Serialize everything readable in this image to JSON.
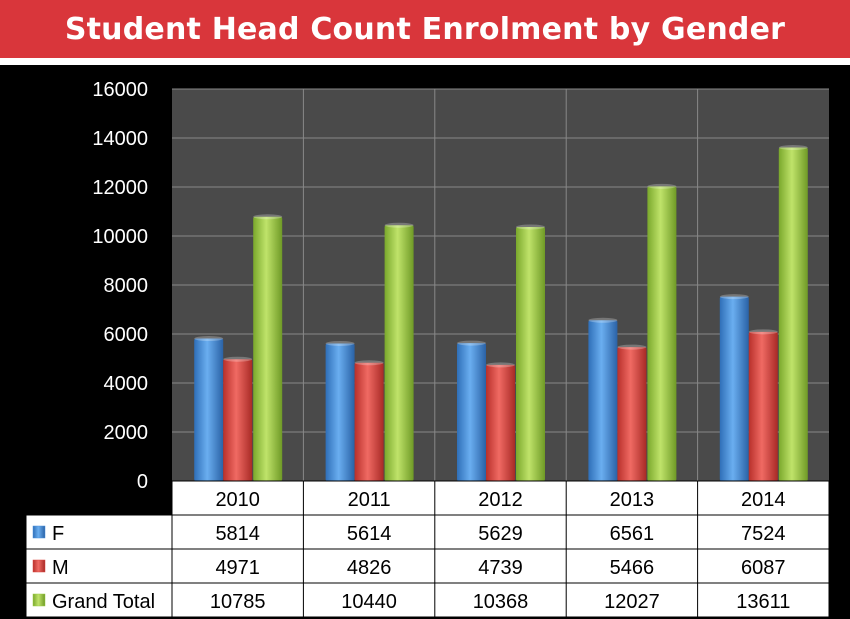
{
  "page": {
    "title": "Student Head Count Enrolment by Gender"
  },
  "colors": {
    "title_bar": "#d9363b",
    "plot_bg": "#4a4a4a",
    "F": "#4a90d9",
    "M": "#d9453f",
    "Grand Total": "#9bcc45"
  },
  "chart_data": {
    "type": "bar",
    "title": "Student Head Count Enrolment by Gender",
    "categories": [
      "2010",
      "2011",
      "2012",
      "2013",
      "2014"
    ],
    "series": [
      {
        "name": "F",
        "values": [
          5814,
          5614,
          5629,
          6561,
          7524
        ]
      },
      {
        "name": "M",
        "values": [
          4971,
          4826,
          4739,
          5466,
          6087
        ]
      },
      {
        "name": "Grand Total",
        "values": [
          10785,
          10440,
          10368,
          12027,
          13611
        ]
      }
    ],
    "yticks": [
      0,
      2000,
      4000,
      6000,
      8000,
      10000,
      12000,
      14000,
      16000
    ],
    "ylim": [
      0,
      16000
    ],
    "grid": true,
    "data_table": true,
    "legend": "data table"
  }
}
